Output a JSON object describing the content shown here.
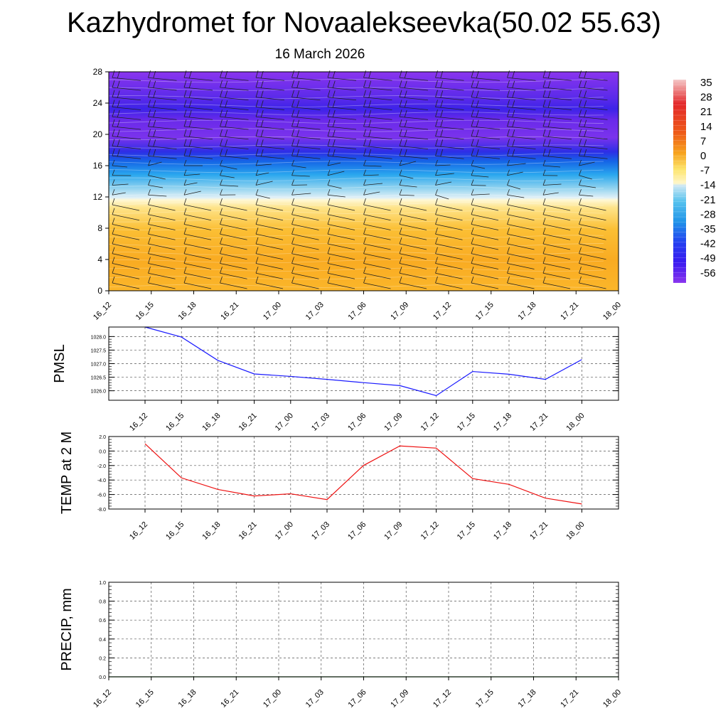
{
  "title": "Kazhydromet for Novaalekseevka(50.02 55.63)",
  "subtitle": "16 March 2026",
  "chart_data": [
    {
      "type": "heatmap",
      "panel": "upper-air",
      "x_categories": [
        "16_12",
        "16_15",
        "16_18",
        "16_21",
        "17_00",
        "17_03",
        "17_06",
        "17_09",
        "17_12",
        "17_15",
        "17_18",
        "17_21",
        "18_00"
      ],
      "yticks": [
        0,
        4,
        8,
        12,
        16,
        20,
        24,
        28
      ],
      "ylim": [
        0,
        28
      ],
      "temperature_profile": [
        {
          "y": 0,
          "t": 0
        },
        {
          "y": 4,
          "t": -2
        },
        {
          "y": 8,
          "t": -5
        },
        {
          "y": 11,
          "t": -9
        },
        {
          "y": 12,
          "t": -14
        },
        {
          "y": 14,
          "t": -22
        },
        {
          "y": 16,
          "t": -32
        },
        {
          "y": 17.5,
          "t": -45
        },
        {
          "y": 20,
          "t": -52
        },
        {
          "y": 23,
          "t": -58
        },
        {
          "y": 28,
          "t": -56
        }
      ],
      "colorbar": {
        "labels": [
          "35",
          "28",
          "21",
          "14",
          "7",
          "0",
          "-7",
          "-14",
          "-21",
          "-28",
          "-35",
          "-42",
          "-49",
          "-56"
        ],
        "values": [
          35,
          28,
          21,
          14,
          7,
          0,
          -7,
          -14,
          -21,
          -28,
          -35,
          -42,
          -49,
          -56
        ]
      },
      "wind_barbs": "present"
    },
    {
      "type": "line",
      "panel": "pmsl",
      "ylabel": "PMSL",
      "categories": [
        "16_12",
        "16_15",
        "16_18",
        "16_21",
        "17_00",
        "17_03",
        "17_06",
        "17_09",
        "17_12",
        "17_15",
        "17_18",
        "17_21",
        "18_00"
      ],
      "yticks": [
        "1026.0",
        "1026.5",
        "1027.0",
        "1027.5",
        "1028.0"
      ],
      "ylim": [
        1025.65,
        1028.35
      ],
      "series": [
        {
          "color": "#1a1aff",
          "values": [
            1028.35,
            1027.98,
            1027.12,
            1026.62,
            1026.53,
            1026.42,
            1026.3,
            1026.19,
            1025.82,
            1026.71,
            1026.61,
            1026.42,
            1027.15
          ]
        }
      ]
    },
    {
      "type": "line",
      "panel": "temp2m",
      "ylabel": "TEMP at 2 M",
      "categories": [
        "16_12",
        "16_15",
        "16_18",
        "16_21",
        "17_00",
        "17_03",
        "17_06",
        "17_09",
        "17_12",
        "17_15",
        "17_18",
        "17_21",
        "18_00"
      ],
      "yticks": [
        "-8.0",
        "-6.0",
        "-4.0",
        "-2.0",
        "0.0",
        "2.0"
      ],
      "ylim": [
        -8,
        2
      ],
      "series": [
        {
          "color": "#ee1111",
          "values": [
            1.0,
            -3.7,
            -5.3,
            -6.2,
            -5.9,
            -6.7,
            -2.0,
            0.7,
            0.4,
            -3.8,
            -4.6,
            -6.5,
            -7.3
          ]
        }
      ]
    },
    {
      "type": "line",
      "panel": "precip",
      "ylabel": "PRECIP, mm",
      "categories": [
        "16_12",
        "16_15",
        "16_18",
        "16_21",
        "17_00",
        "17_03",
        "17_06",
        "17_09",
        "17_12",
        "17_15",
        "17_18",
        "17_21",
        "18_00"
      ],
      "yticks": [
        "0.0",
        "0.2",
        "0.4",
        "0.6",
        "0.8",
        "1.0"
      ],
      "ylim": [
        0,
        1
      ],
      "series": [
        {
          "color": "#1a7a1a",
          "values": [
            0,
            0,
            0,
            0,
            0,
            0,
            0,
            0,
            0,
            0,
            0,
            0,
            0
          ]
        }
      ]
    }
  ]
}
